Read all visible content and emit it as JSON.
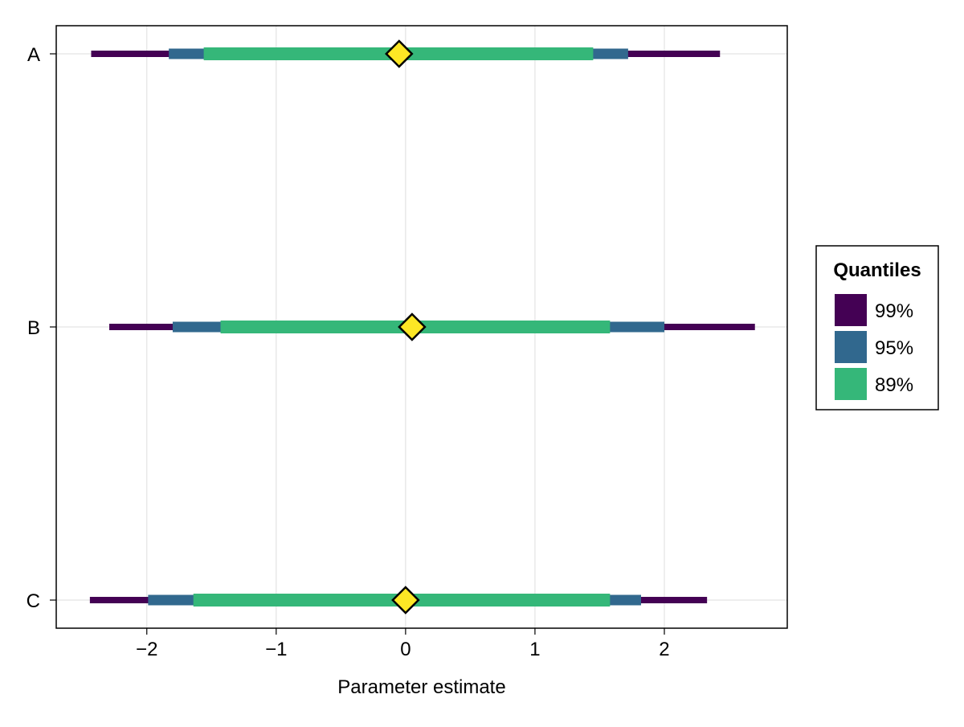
{
  "chart_data": {
    "type": "interval",
    "xlabel": "Parameter estimate",
    "ylabel": "",
    "xlim": [
      -2.7,
      2.95
    ],
    "x_ticks": [
      -2,
      -1,
      0,
      1,
      2
    ],
    "x_tick_labels": [
      "−2",
      "−1",
      "0",
      "1",
      "2"
    ],
    "grid": true,
    "categories": [
      "A",
      "B",
      "C"
    ],
    "legend": {
      "title": "Quantiles",
      "placement": "right",
      "items": [
        {
          "label": "99%",
          "color": "#440154"
        },
        {
          "label": "95%",
          "color": "#31688e"
        },
        {
          "label": "89%",
          "color": "#35b779"
        }
      ]
    },
    "point_color": "#fde725",
    "parameters": [
      {
        "name": "A",
        "estimate": -0.05,
        "intervals": {
          "99%": [
            -2.43,
            2.43
          ],
          "95%": [
            -1.83,
            1.72
          ],
          "89%": [
            -1.56,
            1.45
          ]
        }
      },
      {
        "name": "B",
        "estimate": 0.05,
        "intervals": {
          "99%": [
            -2.29,
            2.7
          ],
          "95%": [
            -1.8,
            2.0
          ],
          "89%": [
            -1.43,
            1.58
          ]
        }
      },
      {
        "name": "C",
        "estimate": 0.0,
        "intervals": {
          "99%": [
            -2.44,
            2.33
          ],
          "95%": [
            -1.99,
            1.82
          ],
          "89%": [
            -1.64,
            1.58
          ]
        }
      }
    ]
  }
}
